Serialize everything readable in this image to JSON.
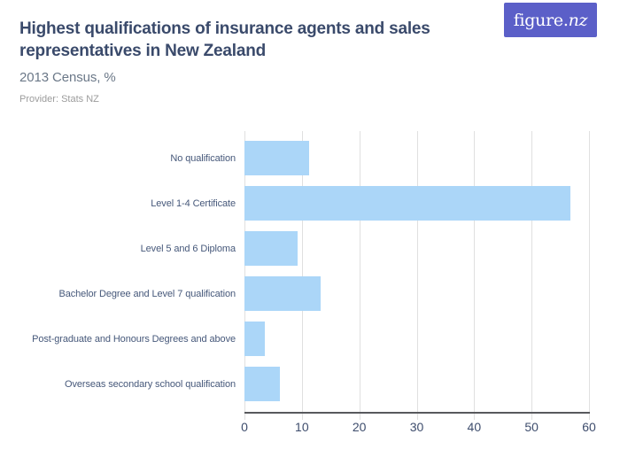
{
  "header": {
    "title": "Highest qualifications of insurance agents and sales\nrepresentatives in New Zealand",
    "subtitle": "2013 Census, %",
    "provider": "Provider: Stats NZ",
    "logo_text_main": "figure.",
    "logo_text_nz": "nz"
  },
  "colors": {
    "title": "#3A4A6B",
    "subtitle": "#6B7888",
    "provider": "#9C9C9C",
    "category_label": "#46587A",
    "tick_label": "#3E4D6D",
    "bar": "#ABD6F8",
    "gridline": "#E0E0E0",
    "axis": "#58595D",
    "logo_background": "#5B5FC8",
    "logo_text": "#FFFFFF"
  },
  "chart_data": {
    "type": "bar",
    "orientation": "horizontal",
    "title": "Highest qualifications of insurance agents and sales representatives in New Zealand",
    "subtitle": "2013 Census, %",
    "source": "Provider: Stats NZ",
    "categories": [
      "No qualification",
      "Level 1-4 Certificate",
      "Level 5 and 6 Diploma",
      "Bachelor Degree and Level 7 qualification",
      "Post-graduate and Honours Degrees and above",
      "Overseas secondary school qualification"
    ],
    "values": [
      11.3,
      56.8,
      9.2,
      13.2,
      3.5,
      6.1
    ],
    "unit": "%",
    "xlabel": "",
    "ylabel": "",
    "xlim": [
      0,
      60
    ],
    "xticks": [
      0,
      10,
      20,
      30,
      40,
      50,
      60
    ],
    "grid": "vertical",
    "legend": "none"
  }
}
